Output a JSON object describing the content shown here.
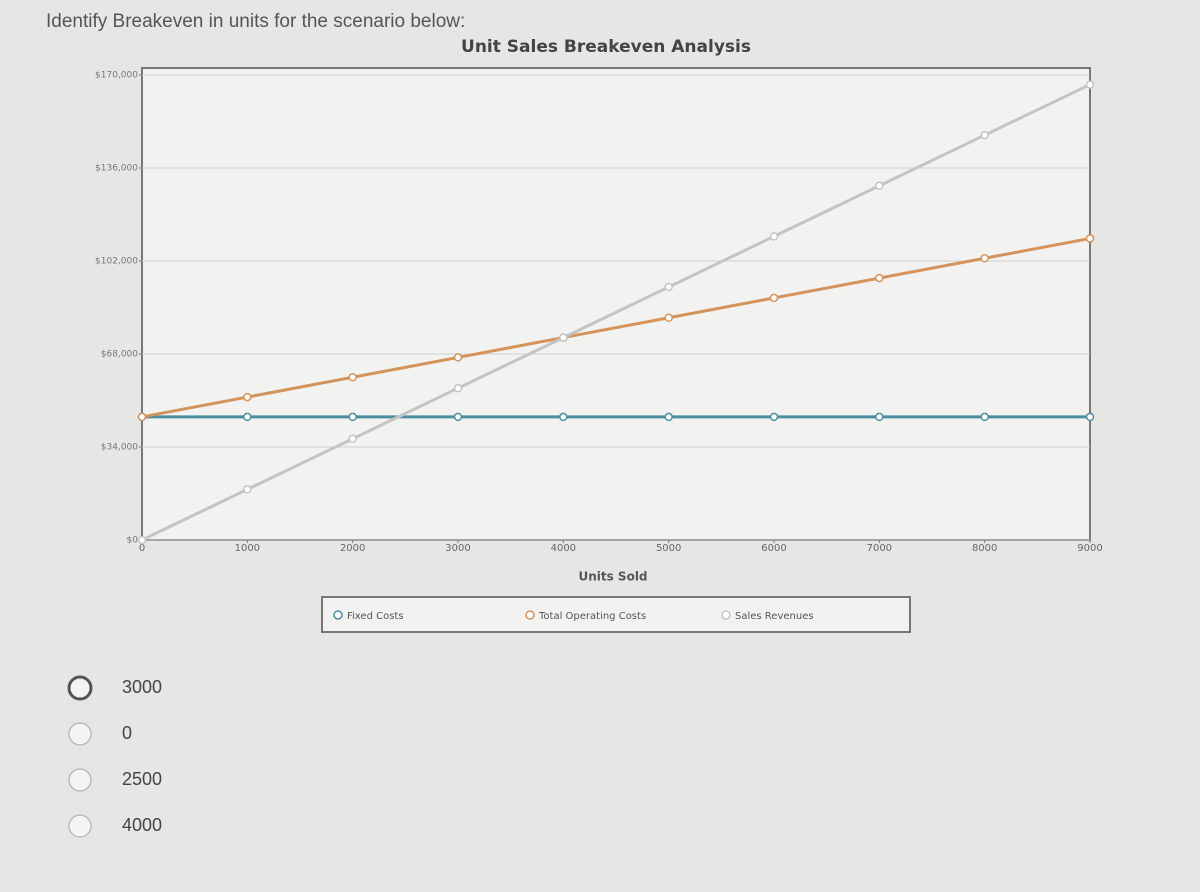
{
  "question": "Identify Breakeven in units for the scenario below:",
  "options": [
    "3000",
    "0",
    "2500",
    "4000"
  ],
  "chart_data": {
    "type": "line",
    "title": "Unit Sales Breakeven Analysis",
    "x_label": "Units Sold",
    "x": [
      0,
      1000,
      2000,
      3000,
      4000,
      5000,
      6000,
      7000,
      8000,
      9000
    ],
    "series": [
      {
        "name": "Fixed Costs",
        "color": "#4a8fa0",
        "values": [
          45000,
          45000,
          45000,
          45000,
          45000,
          45000,
          45000,
          45000,
          45000,
          45000
        ]
      },
      {
        "name": "Total Operating Costs",
        "color": "#d4935a",
        "values": [
          45000,
          52250,
          59500,
          66750,
          74000,
          81250,
          88500,
          95750,
          103000,
          110250
        ]
      },
      {
        "name": "Sales Revenues",
        "color": "#c4c4c4",
        "values": [
          0,
          18500,
          37000,
          55500,
          74000,
          92500,
          111000,
          129500,
          148000,
          166500
        ]
      }
    ],
    "xlim": [
      0,
      9000
    ],
    "xticks": [
      0,
      1000,
      2000,
      3000,
      4000,
      5000,
      6000,
      7000,
      8000,
      9000
    ],
    "ylim": [
      0,
      170000
    ],
    "yticks": [
      {
        "value": 0,
        "label": "$0"
      },
      {
        "value": 34000,
        "label": "$34,000"
      },
      {
        "value": 68000,
        "label": "$68,000"
      },
      {
        "value": 102000,
        "label": "$102,000"
      },
      {
        "value": 136000,
        "label": "$136,000"
      },
      {
        "value": 170000,
        "label": "$170,000"
      }
    ],
    "grid": true
  }
}
